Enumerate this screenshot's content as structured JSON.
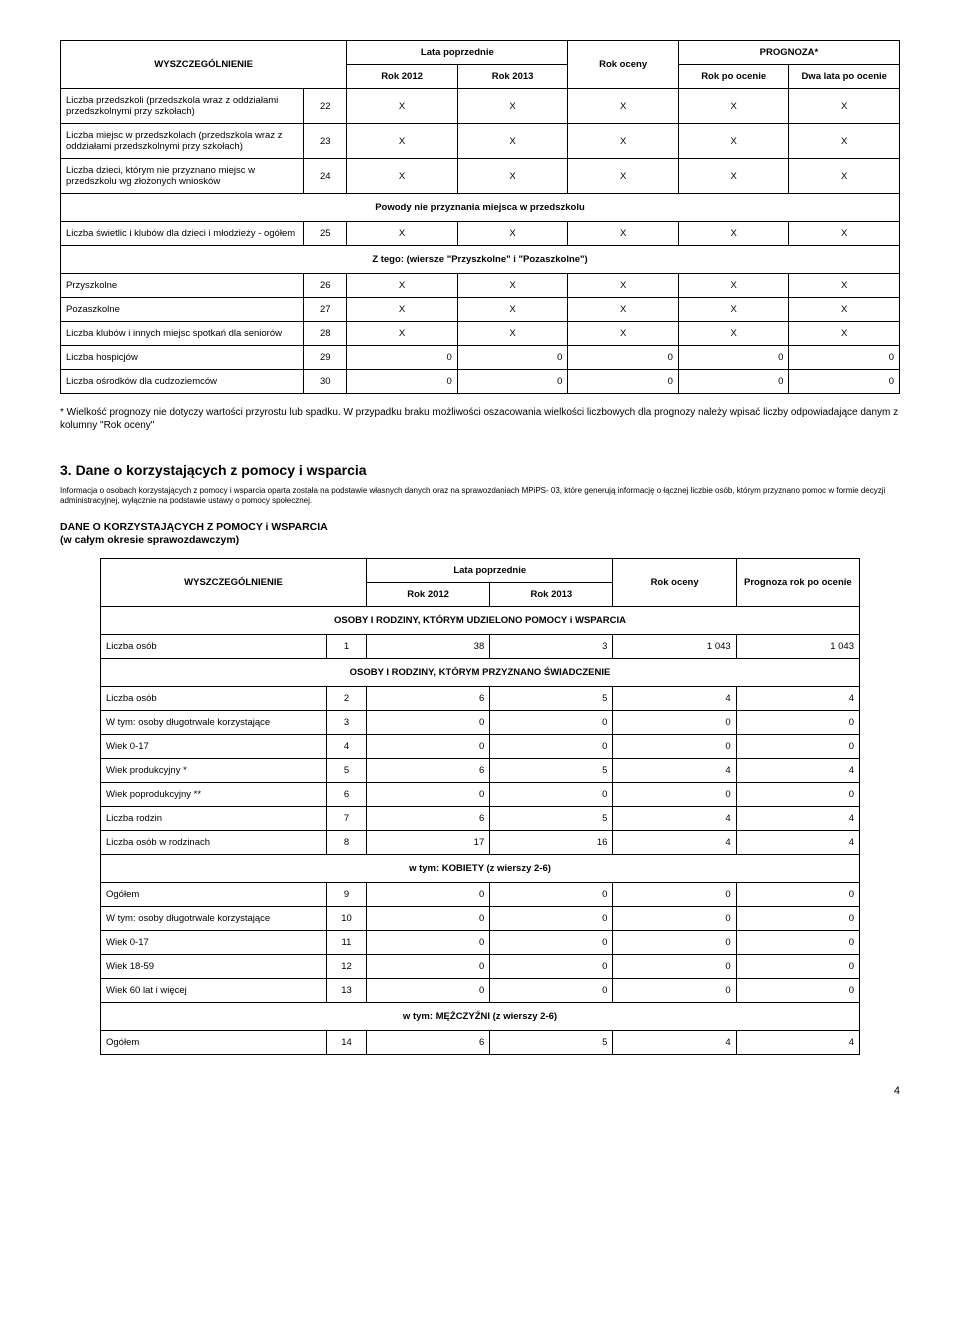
{
  "table1": {
    "headers": {
      "col_label": "WYSZCZEGÓLNIENIE",
      "group_prev": "Lata poprzednie",
      "rok2012": "Rok 2012",
      "rok2013": "Rok 2013",
      "rok_oceny": "Rok oceny",
      "prognoza": "PROGNOZA*",
      "rok_po": "Rok po ocenie",
      "dwa_lata": "Dwa lata po ocenie"
    },
    "rows": [
      {
        "label": "Liczba przedszkoli (przedszkola wraz z oddziałami przedszkolnymi przy szkołach)",
        "num": "22",
        "v": [
          "X",
          "X",
          "X",
          "X",
          "X"
        ]
      },
      {
        "label": "Liczba miejsc w przedszkolach (przedszkola wraz z oddziałami przedszkolnymi przy szkołach)",
        "num": "23",
        "v": [
          "X",
          "X",
          "X",
          "X",
          "X"
        ]
      },
      {
        "label": "Liczba dzieci, którym nie przyznano miejsc w przedszkolu wg złożonych wniosków",
        "num": "24",
        "v": [
          "X",
          "X",
          "X",
          "X",
          "X"
        ]
      }
    ],
    "section1": "Powody nie przyznania miejsca w przedszkolu",
    "rows2": [
      {
        "label": "Liczba świetlic i klubów dla dzieci i młodzieży - ogółem",
        "num": "25",
        "v": [
          "X",
          "X",
          "X",
          "X",
          "X"
        ]
      }
    ],
    "section2": "Z tego: (wiersze \"Przyszkolne\" i \"Pozaszkolne\")",
    "rows3": [
      {
        "label": "Przyszkolne",
        "num": "26",
        "v": [
          "X",
          "X",
          "X",
          "X",
          "X"
        ]
      },
      {
        "label": "Pozaszkolne",
        "num": "27",
        "v": [
          "X",
          "X",
          "X",
          "X",
          "X"
        ]
      },
      {
        "label": "Liczba klubów i innych miejsc spotkań dla seniorów",
        "num": "28",
        "v": [
          "X",
          "X",
          "X",
          "X",
          "X"
        ]
      },
      {
        "label": "Liczba hospicjów",
        "num": "29",
        "v": [
          "0",
          "0",
          "0",
          "0",
          "0"
        ],
        "right": true
      },
      {
        "label": "Liczba ośrodków dla cudzoziemców",
        "num": "30",
        "v": [
          "0",
          "0",
          "0",
          "0",
          "0"
        ],
        "right": true
      }
    ]
  },
  "footnote1": "* Wielkość prognozy nie dotyczy wartości przyrostu lub spadku. W przypadku braku możliwości oszacowania wielkości liczbowych dla prognozy należy wpisać liczby odpowiadające danym z kolumny \"Rok oceny\"",
  "section3": {
    "title": "3. Dane o korzystających z pomocy i wsparcia",
    "desc": "Informacja o osobach korzystających z pomocy i wsparcia oparta została na podstawie własnych danych oraz na sprawozdaniach MPiPS- 03, które generują informację o łącznej liczbie osób, którym przyznano pomoc w formie decyzji administracyjnej, wyłącznie na podstawie ustawy o pomocy społecznej.",
    "table_title_1": "DANE O KORZYSTAJĄCYCH Z POMOCY i WSPARCIA",
    "table_title_2": "(w całym okresie sprawozdawczym)"
  },
  "table2": {
    "headers": {
      "col_label": "WYSZCZEGÓLNIENIE",
      "group_prev": "Lata poprzednie",
      "rok2012": "Rok 2012",
      "rok2013": "Rok 2013",
      "rok_oceny": "Rok oceny",
      "prognoza": "Prognoza rok po ocenie"
    },
    "sec1": "OSOBY I RODZINY, KTÓRYM UDZIELONO POMOCY i WSPARCIA",
    "r1": {
      "label": "Liczba osób",
      "num": "1",
      "v": [
        "38",
        "3",
        "1 043",
        "1 043"
      ]
    },
    "sec2": "OSOBY I RODZINY, KTÓRYM PRZYZNANO ŚWIADCZENIE",
    "rows2": [
      {
        "label": "Liczba osób",
        "num": "2",
        "v": [
          "6",
          "5",
          "4",
          "4"
        ]
      },
      {
        "label": "W tym: osoby długotrwale korzystające",
        "num": "3",
        "v": [
          "0",
          "0",
          "0",
          "0"
        ]
      },
      {
        "label": "Wiek 0-17",
        "num": "4",
        "v": [
          "0",
          "0",
          "0",
          "0"
        ]
      },
      {
        "label": "Wiek produkcyjny *",
        "num": "5",
        "v": [
          "6",
          "5",
          "4",
          "4"
        ]
      },
      {
        "label": "Wiek poprodukcyjny **",
        "num": "6",
        "v": [
          "0",
          "0",
          "0",
          "0"
        ]
      },
      {
        "label": "Liczba rodzin",
        "num": "7",
        "v": [
          "6",
          "5",
          "4",
          "4"
        ]
      },
      {
        "label": "Liczba osób w rodzinach",
        "num": "8",
        "v": [
          "17",
          "16",
          "4",
          "4"
        ]
      }
    ],
    "sec3": "w tym: KOBIETY (z wierszy 2-6)",
    "rows3": [
      {
        "label": "Ogółem",
        "num": "9",
        "v": [
          "0",
          "0",
          "0",
          "0"
        ]
      },
      {
        "label": "W tym: osoby długotrwale korzystające",
        "num": "10",
        "v": [
          "0",
          "0",
          "0",
          "0"
        ]
      },
      {
        "label": "Wiek 0-17",
        "num": "11",
        "v": [
          "0",
          "0",
          "0",
          "0"
        ]
      },
      {
        "label": "Wiek 18-59",
        "num": "12",
        "v": [
          "0",
          "0",
          "0",
          "0"
        ]
      },
      {
        "label": "Wiek 60 lat i więcej",
        "num": "13",
        "v": [
          "0",
          "0",
          "0",
          "0"
        ]
      }
    ],
    "sec4": "w tym: MĘŻCZYŹNI (z wierszy 2-6)",
    "rows4": [
      {
        "label": "Ogółem",
        "num": "14",
        "v": [
          "6",
          "5",
          "4",
          "4"
        ]
      }
    ]
  },
  "page_num": "4"
}
